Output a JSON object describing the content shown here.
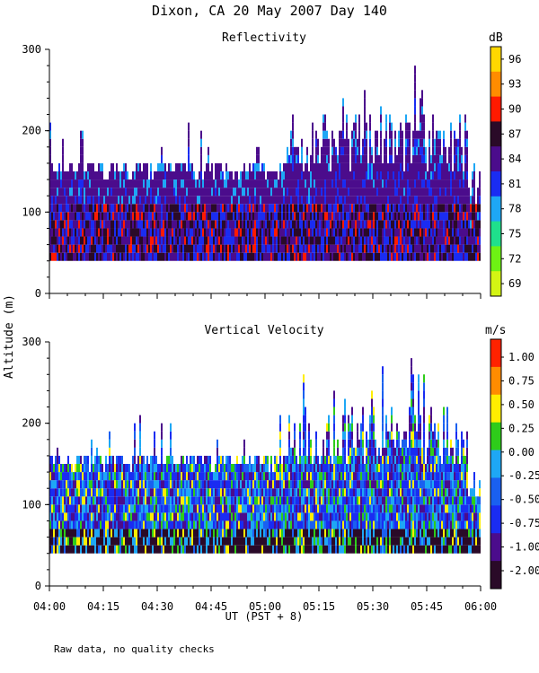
{
  "figure": {
    "title": "Dixon, CA 20 May 2007  Day 140",
    "ylabel": "Altitude (m)",
    "xlabel": "UT  (PST + 8)",
    "footnote": "Raw data, no quality checks"
  },
  "chart_data": [
    {
      "type": "heatmap",
      "title": "Reflectivity",
      "xlabel": "UT  (PST + 8)",
      "ylabel": "Altitude (m)",
      "xlim": [
        "04:00",
        "06:00"
      ],
      "ylim": [
        0,
        300
      ],
      "x_ticks": [
        "04:00",
        "04:15",
        "04:30",
        "04:45",
        "05:00",
        "05:15",
        "05:30",
        "05:45",
        "06:00"
      ],
      "y_ticks": [
        0,
        100,
        200,
        300
      ],
      "colorbar": {
        "unit": "dB",
        "labels": [
          "96",
          "93",
          "90",
          "87",
          "84",
          "81",
          "78",
          "75",
          "72",
          "69"
        ],
        "colors": [
          "#ffd700",
          "#ff8c00",
          "#ff1a00",
          "#2a0a28",
          "#4b0c8c",
          "#1a2cf2",
          "#1ea7f5",
          "#1fe08c",
          "#6ef214",
          "#d4f514"
        ]
      },
      "data_summary": {
        "base_altitude_m": 40,
        "typical_top_m": [
          140,
          160
        ],
        "max_echo_top_m": 280,
        "max_echo_top_time": "05:43",
        "peak_values_dB": [
          90,
          93
        ],
        "peak_layer_m": [
          50,
          110
        ]
      }
    },
    {
      "type": "heatmap",
      "title": "Vertical Velocity",
      "xlabel": "UT  (PST + 8)",
      "ylabel": "Altitude (m)",
      "xlim": [
        "04:00",
        "06:00"
      ],
      "ylim": [
        0,
        300
      ],
      "x_ticks": [
        "04:00",
        "04:15",
        "04:30",
        "04:45",
        "05:00",
        "05:15",
        "05:30",
        "05:45",
        "06:00"
      ],
      "y_ticks": [
        0,
        100,
        200,
        300
      ],
      "colorbar": {
        "unit": "m/s",
        "labels": [
          "1.00",
          "0.75",
          "0.50",
          "0.25",
          "0.00",
          "-0.25",
          "-0.50",
          "-0.75",
          "-1.00",
          "-2.00"
        ],
        "colors": [
          "#ff2200",
          "#ff8c00",
          "#ffee00",
          "#2ecc1a",
          "#1ea7f5",
          "#1a60f0",
          "#1a2cf2",
          "#4b0c8c",
          "#2a0a28"
        ]
      },
      "data_summary": {
        "base_altitude_m": 40,
        "typical_top_m": [
          140,
          160
        ],
        "max_echo_top_m": 280,
        "max_echo_top_time": "05:43",
        "typical_range_m_s": [
          -1.0,
          0.5
        ],
        "near_surface_m_s": -2.0
      }
    }
  ]
}
